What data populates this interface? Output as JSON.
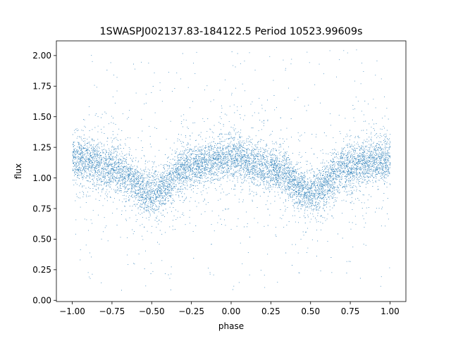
{
  "chart_data": {
    "type": "scatter",
    "title": "1SWASPJ002137.83-184122.5 Period 10523.99609s",
    "xlabel": "phase",
    "ylabel": "flux",
    "xlim": [
      -1.1,
      1.1
    ],
    "ylim": [
      -0.01,
      2.12
    ],
    "xticks": [
      -1.0,
      -0.75,
      -0.5,
      -0.25,
      0.0,
      0.25,
      0.5,
      0.75,
      1.0
    ],
    "xtick_labels": [
      "−1.00",
      "−0.75",
      "−0.50",
      "−0.25",
      "0.00",
      "0.25",
      "0.50",
      "0.75",
      "1.00"
    ],
    "yticks": [
      0.0,
      0.25,
      0.5,
      0.75,
      1.0,
      1.25,
      1.5,
      1.75,
      2.0
    ],
    "ytick_labels": [
      "0.00",
      "0.25",
      "0.50",
      "0.75",
      "1.00",
      "1.25",
      "1.50",
      "1.75",
      "2.00"
    ],
    "grid": false,
    "legend": "none",
    "point_color": "#1f77b4",
    "marker": "dot",
    "phase_range": [
      -1.0,
      1.0
    ],
    "model_profile": {
      "phase": [
        -1.0,
        -0.75,
        -0.5,
        -0.25,
        0.0,
        0.25,
        0.5,
        0.75,
        1.0
      ],
      "flux": [
        1.15,
        1.08,
        0.88,
        1.1,
        1.17,
        1.08,
        0.88,
        1.1,
        1.15
      ]
    },
    "typical_scatter_flux": 0.09,
    "outlier_flux_range": [
      0.08,
      2.05
    ],
    "approx_point_count": 45000
  }
}
